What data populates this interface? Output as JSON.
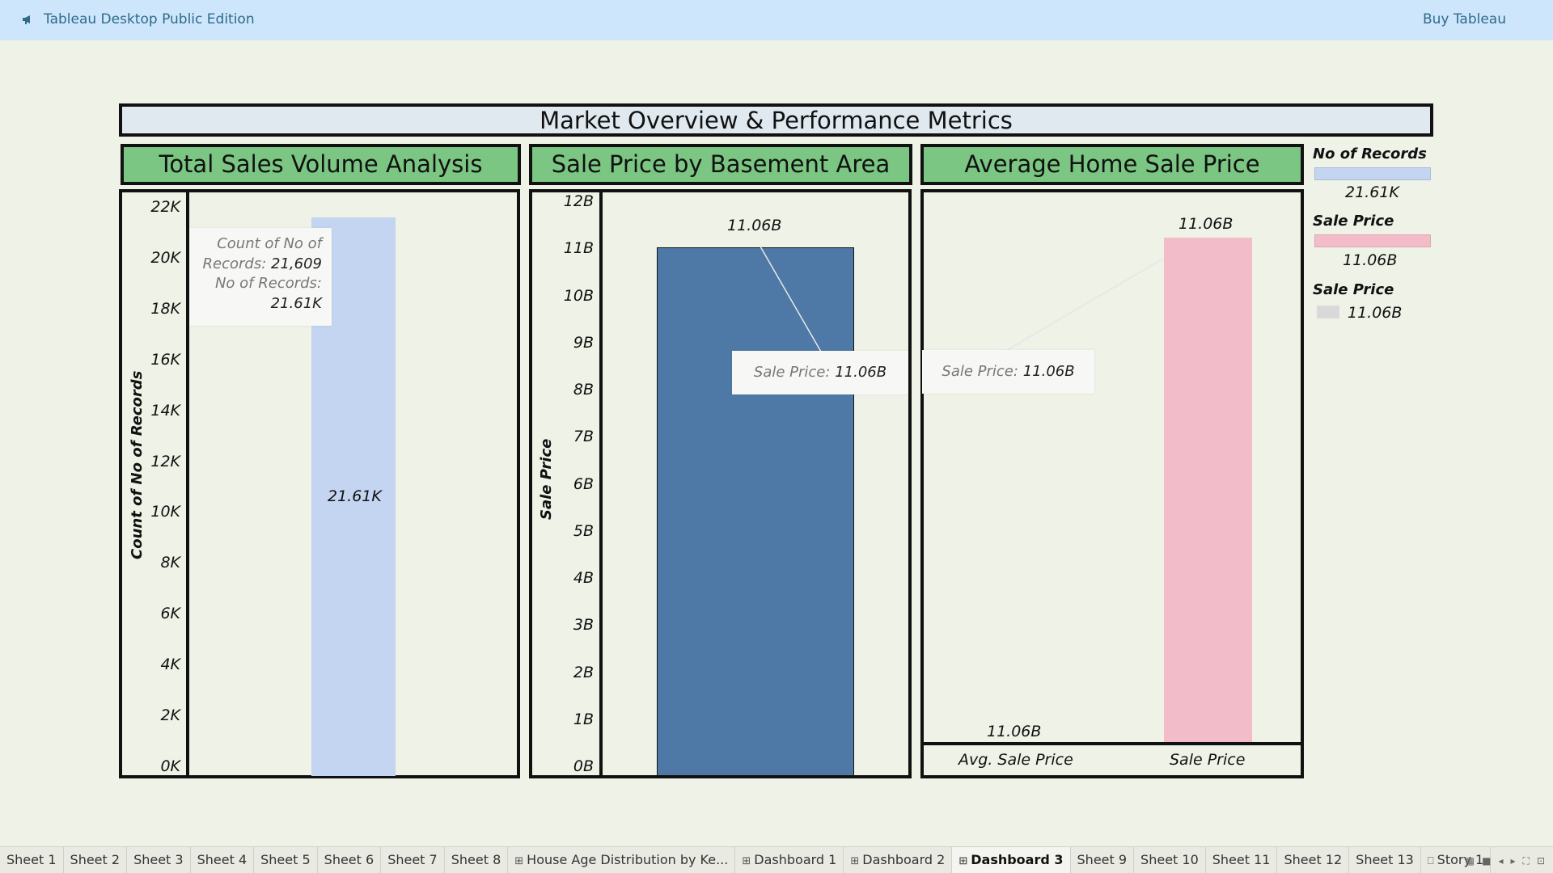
{
  "topbar": {
    "app_title": "Tableau Desktop Public Edition",
    "buy_label": "Buy Tableau",
    "icon": "megaphone-icon"
  },
  "dashboard": {
    "title": "Market Overview & Performance Metrics"
  },
  "panels": {
    "p1": {
      "title": "Total Sales Volume Analysis",
      "axis_title": "Count of No of Records",
      "ticks": [
        "22K",
        "20K",
        "18K",
        "16K",
        "14K",
        "12K",
        "10K",
        "8K",
        "6K",
        "4K",
        "2K",
        "0K"
      ],
      "bar_label": "21.61K",
      "tooltip": {
        "line1": "Count of No of",
        "line2_key": "Records:",
        "line2_val": "21,609",
        "line3": "No of Records:",
        "line4": "21.61K"
      }
    },
    "p2": {
      "title": "Sale Price by Basement Area",
      "axis_title": "Sale Price",
      "ticks": [
        "12B",
        "11B",
        "10B",
        "9B",
        "8B",
        "7B",
        "6B",
        "5B",
        "4B",
        "3B",
        "2B",
        "1B",
        "0B"
      ],
      "bar_label": "11.06B",
      "tooltip": {
        "key": "Sale Price:",
        "val": "11.06B"
      }
    },
    "p3": {
      "title": "Average Home Sale Price",
      "bar1_label": "11.06B",
      "bar2_label": "11.06B",
      "cat1": "Avg. Sale Price",
      "cat2": "Sale Price",
      "tooltip": {
        "key": "Sale Price:",
        "val": "11.06B"
      }
    }
  },
  "legend": {
    "items": [
      {
        "title": "No of Records",
        "value": "21.61K",
        "color": "#c3d5f1"
      },
      {
        "title": "Sale Price",
        "value": "11.06B",
        "color": "#f2bcc8"
      },
      {
        "title": "Sale Price",
        "value": "11.06B",
        "color": "#d9d9d9"
      }
    ]
  },
  "colors": {
    "bar_records": "#c3d5f1",
    "bar_price": "#4e79a7",
    "bar_pink": "#f2bcc8",
    "header_green": "#7ac682",
    "topbar": "#cde6fb",
    "background": "#eff2e6"
  },
  "chart_data": [
    {
      "type": "bar",
      "title": "Total Sales Volume Analysis",
      "categories": [
        ""
      ],
      "values": [
        21609
      ],
      "ylabel": "Count of No of Records",
      "ylim": [
        0,
        22000
      ]
    },
    {
      "type": "bar",
      "title": "Sale Price by Basement Area",
      "categories": [
        ""
      ],
      "values": [
        11060000000
      ],
      "ylabel": "Sale Price",
      "ylim": [
        0,
        12000000000
      ]
    },
    {
      "type": "bar",
      "title": "Average Home Sale Price",
      "categories": [
        "Avg. Sale Price",
        "Sale Price"
      ],
      "values": [
        11060000000,
        11060000000
      ]
    }
  ],
  "tabs": [
    {
      "label": "Sheet 1",
      "icon": ""
    },
    {
      "label": "Sheet 2",
      "icon": ""
    },
    {
      "label": "Sheet 3",
      "icon": ""
    },
    {
      "label": "Sheet 4",
      "icon": ""
    },
    {
      "label": "Sheet 5",
      "icon": ""
    },
    {
      "label": "Sheet 6",
      "icon": ""
    },
    {
      "label": "Sheet 7",
      "icon": ""
    },
    {
      "label": "Sheet 8",
      "icon": ""
    },
    {
      "label": "House Age Distribution by Ke...",
      "icon": "⊞"
    },
    {
      "label": "Dashboard 1",
      "icon": "⊞"
    },
    {
      "label": "Dashboard 2",
      "icon": "⊞"
    },
    {
      "label": "Dashboard 3",
      "icon": "⊞",
      "active": true
    },
    {
      "label": "Sheet 9",
      "icon": ""
    },
    {
      "label": "Sheet 10",
      "icon": ""
    },
    {
      "label": "Sheet 11",
      "icon": ""
    },
    {
      "label": "Sheet 12",
      "icon": ""
    },
    {
      "label": "Sheet 13",
      "icon": ""
    },
    {
      "label": "Story 1",
      "icon": "⎕"
    }
  ]
}
